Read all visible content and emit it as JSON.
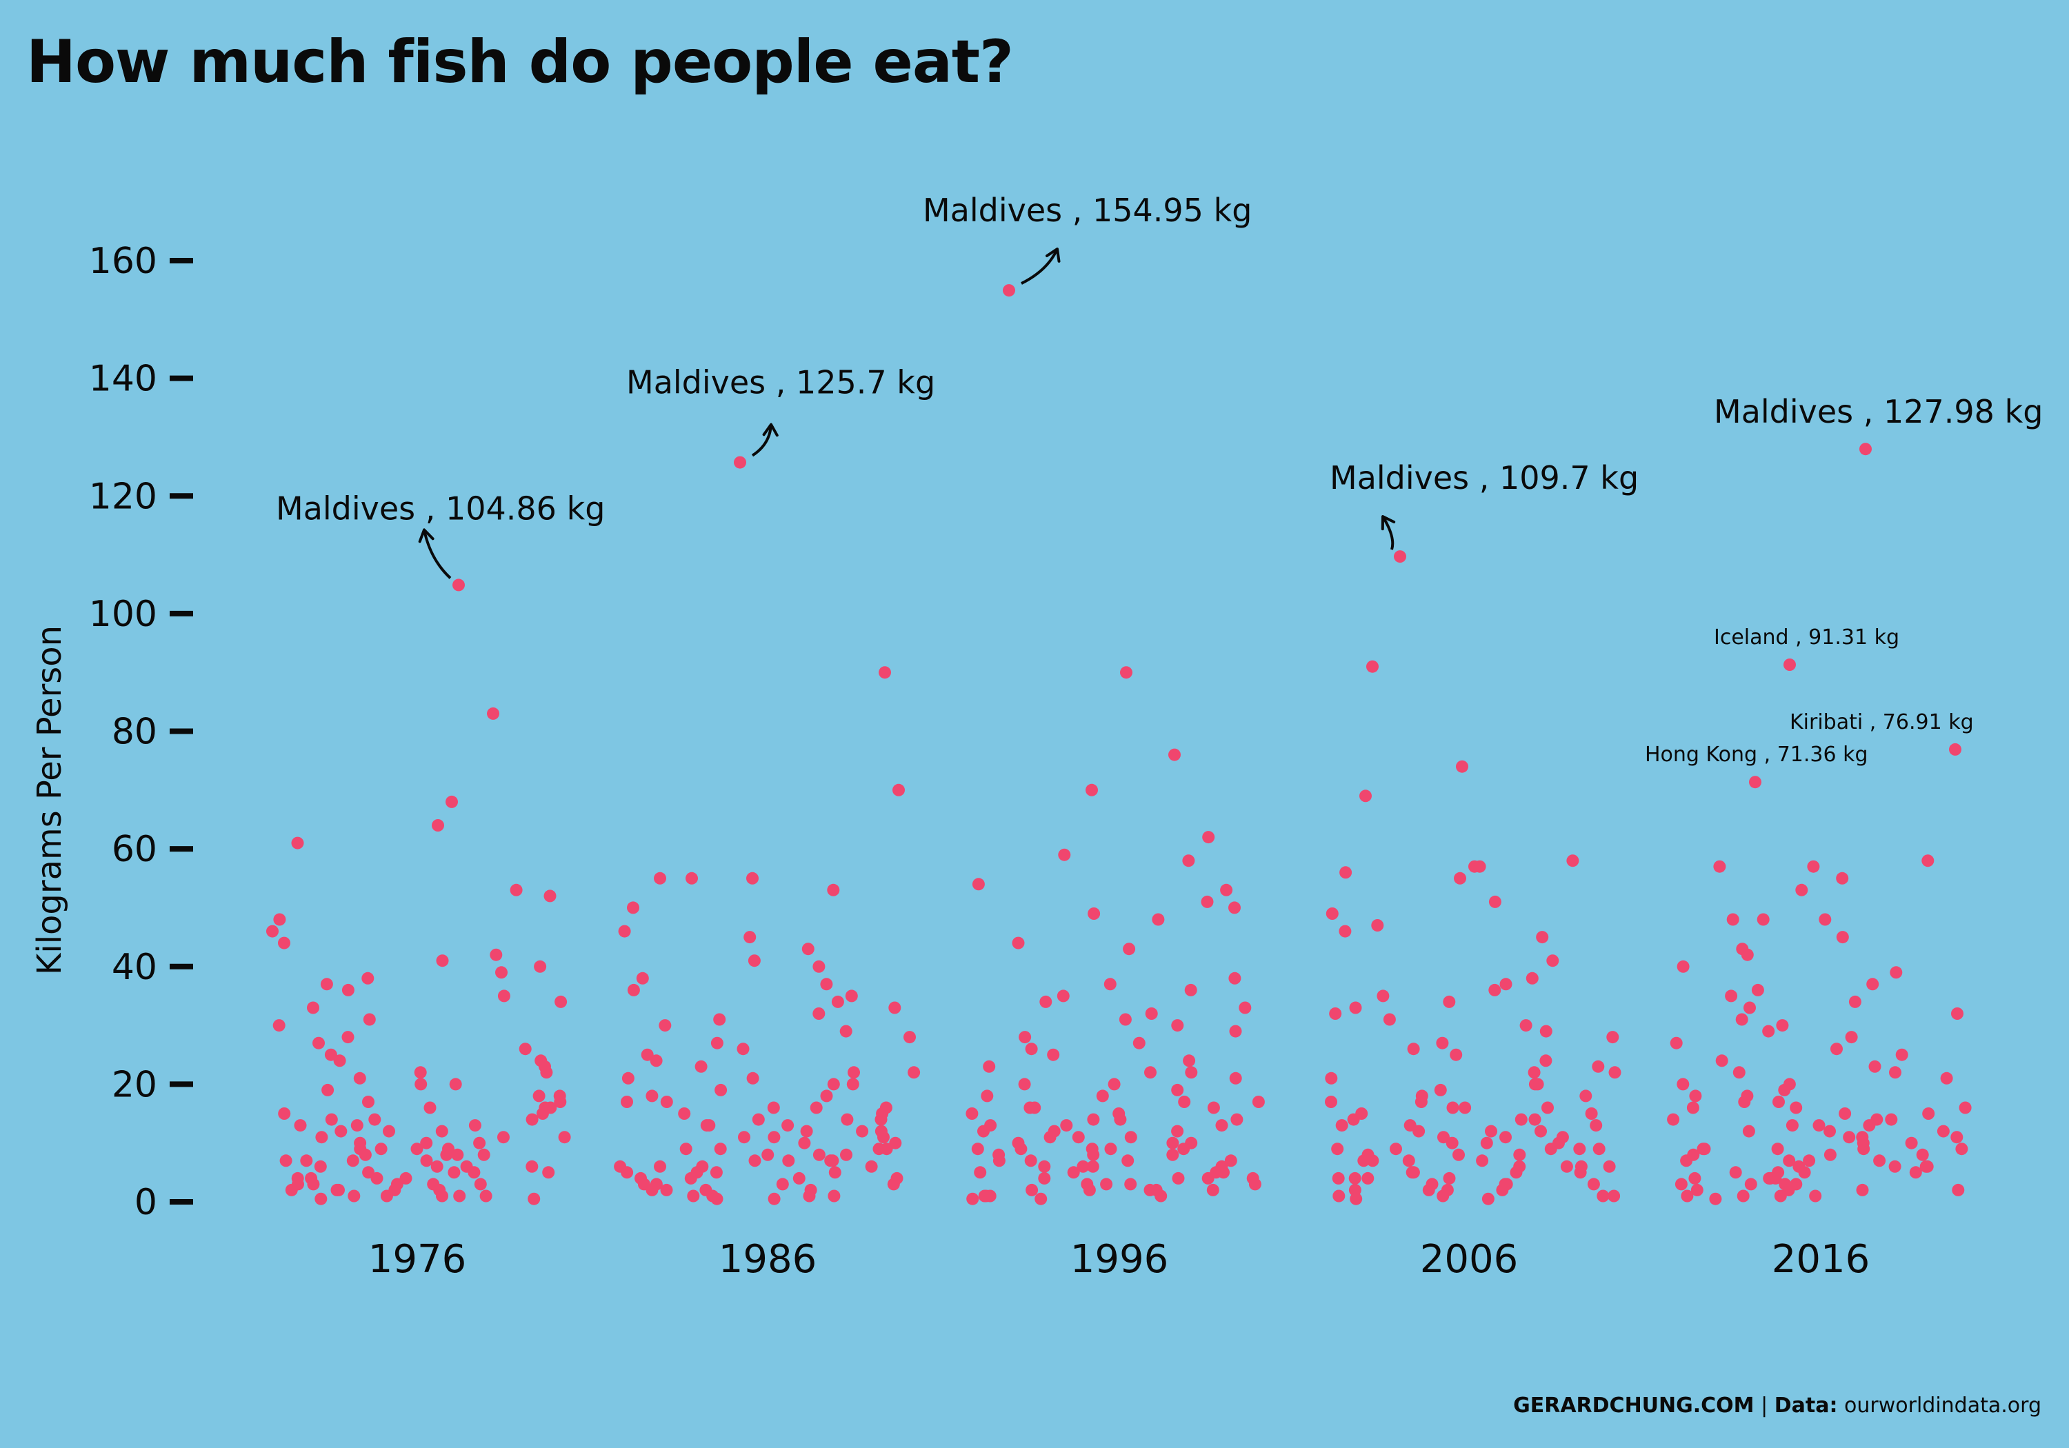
{
  "title": "How much fish do people eat?",
  "footer": {
    "brand": "GERARDCHUNG.COM",
    "separator": "|",
    "data_label": "Data:",
    "source": "ourworldindata.org"
  },
  "colors": {
    "background": "#7ec6e3",
    "points": "#f0466e",
    "text": "#0a0a0a"
  },
  "chart_data": {
    "type": "scatter",
    "ylabel": "Kilograms Per Person",
    "xlabel": "",
    "ylim": [
      0,
      160
    ],
    "yticks": [
      0,
      20,
      40,
      60,
      80,
      100,
      120,
      140,
      160
    ],
    "grid": false,
    "categories": [
      "1976",
      "1986",
      "1996",
      "2006",
      "2016"
    ],
    "series": [
      {
        "values": [
          104.86,
          83,
          68,
          64,
          61,
          53,
          52,
          48,
          46,
          44,
          42,
          41,
          40,
          39,
          38,
          37,
          36,
          35,
          34,
          33,
          31,
          30,
          28,
          27,
          26,
          25,
          24,
          24,
          23,
          22,
          21,
          20,
          20,
          19,
          18,
          17,
          17,
          16,
          16,
          15,
          15,
          14,
          14,
          13,
          13,
          12,
          12,
          11,
          11,
          10,
          10,
          10,
          9,
          9,
          9,
          8,
          8,
          8,
          7,
          7,
          7,
          6,
          6,
          6,
          5,
          5,
          5,
          4,
          4,
          4,
          3,
          3,
          3,
          3,
          2,
          2,
          2,
          2,
          1,
          1,
          1,
          1,
          0.5,
          0.5,
          12,
          8,
          6,
          18,
          22,
          3,
          5,
          14,
          9,
          2,
          11,
          16,
          7,
          4,
          13,
          1
        ]
      },
      {
        "values": [
          125.7,
          90,
          70,
          55,
          55,
          55,
          53,
          50,
          46,
          45,
          43,
          41,
          40,
          38,
          37,
          36,
          35,
          34,
          33,
          32,
          31,
          30,
          29,
          28,
          27,
          26,
          25,
          24,
          23,
          22,
          21,
          21,
          20,
          20,
          19,
          18,
          17,
          17,
          16,
          16,
          15,
          15,
          14,
          14,
          13,
          13,
          12,
          12,
          11,
          11,
          10,
          10,
          9,
          9,
          8,
          8,
          8,
          7,
          7,
          7,
          6,
          6,
          6,
          5,
          5,
          5,
          4,
          4,
          4,
          3,
          3,
          3,
          2,
          2,
          2,
          1,
          1,
          1,
          0.5,
          0.5,
          12,
          9,
          6,
          18,
          22,
          3,
          5,
          14,
          9,
          2,
          11,
          16,
          7,
          4,
          13,
          1
        ]
      },
      {
        "values": [
          154.95,
          90,
          76,
          70,
          62,
          59,
          58,
          54,
          53,
          51,
          50,
          49,
          48,
          44,
          43,
          38,
          37,
          36,
          35,
          34,
          33,
          32,
          31,
          30,
          29,
          28,
          27,
          26,
          25,
          24,
          23,
          22,
          21,
          20,
          20,
          19,
          18,
          17,
          17,
          16,
          16,
          15,
          15,
          14,
          14,
          13,
          13,
          12,
          12,
          11,
          11,
          10,
          10,
          10,
          9,
          9,
          9,
          8,
          8,
          8,
          7,
          7,
          7,
          6,
          6,
          6,
          5,
          5,
          5,
          4,
          4,
          4,
          3,
          3,
          3,
          2,
          2,
          2,
          2,
          1,
          1,
          1,
          0.5,
          0.5,
          12,
          9,
          6,
          18,
          22,
          3,
          5,
          14,
          9,
          2,
          11,
          16,
          7,
          4,
          13,
          1
        ]
      },
      {
        "values": [
          109.7,
          91,
          74,
          69,
          58,
          57,
          57,
          56,
          55,
          51,
          49,
          47,
          46,
          45,
          41,
          38,
          37,
          36,
          35,
          34,
          33,
          32,
          31,
          30,
          29,
          28,
          27,
          26,
          25,
          24,
          23,
          22,
          21,
          20,
          20,
          19,
          18,
          17,
          17,
          16,
          16,
          15,
          15,
          14,
          14,
          13,
          13,
          12,
          12,
          11,
          11,
          10,
          10,
          10,
          9,
          9,
          9,
          8,
          8,
          8,
          7,
          7,
          7,
          6,
          6,
          6,
          5,
          5,
          5,
          4,
          4,
          4,
          3,
          3,
          3,
          2,
          2,
          2,
          1,
          1,
          1,
          0.5,
          0.5,
          12,
          9,
          6,
          18,
          22,
          3,
          5,
          14,
          9,
          2,
          11,
          16,
          7,
          4,
          13,
          1
        ]
      },
      {
        "values": [
          127.98,
          91.31,
          76.91,
          71.36,
          58,
          57,
          57,
          55,
          53,
          48,
          48,
          48,
          45,
          43,
          42,
          40,
          39,
          37,
          36,
          35,
          34,
          33,
          32,
          31,
          30,
          29,
          28,
          27,
          26,
          25,
          24,
          23,
          22,
          21,
          20,
          20,
          19,
          18,
          17,
          17,
          16,
          16,
          15,
          15,
          14,
          14,
          13,
          13,
          12,
          12,
          11,
          11,
          10,
          10,
          9,
          9,
          9,
          8,
          8,
          8,
          7,
          7,
          7,
          6,
          6,
          6,
          5,
          5,
          5,
          4,
          4,
          4,
          3,
          3,
          3,
          2,
          2,
          2,
          1,
          1,
          1,
          0.5,
          12,
          9,
          6,
          18,
          22,
          3,
          5,
          14,
          9,
          2,
          11,
          16,
          7,
          4,
          13,
          1
        ]
      }
    ],
    "annotations": [
      {
        "category": "1976",
        "text": "Maldives , 104.86 kg",
        "value": 104.86,
        "size": "large",
        "arrow": true
      },
      {
        "category": "1986",
        "text": "Maldives , 125.7 kg",
        "value": 125.7,
        "size": "large",
        "arrow": true
      },
      {
        "category": "1996",
        "text": "Maldives , 154.95 kg",
        "value": 154.95,
        "size": "large",
        "arrow": true
      },
      {
        "category": "2006",
        "text": "Maldives , 109.7 kg",
        "value": 109.7,
        "size": "large",
        "arrow": true
      },
      {
        "category": "2016",
        "text": "Maldives , 127.98 kg",
        "value": 127.98,
        "size": "large",
        "arrow": false
      },
      {
        "category": "2016",
        "text": "Iceland , 91.31 kg",
        "value": 91.31,
        "size": "small",
        "arrow": false
      },
      {
        "category": "2016",
        "text": "Kiribati , 76.91 kg",
        "value": 76.91,
        "size": "small",
        "arrow": false
      },
      {
        "category": "2016",
        "text": "Hong Kong , 71.36 kg",
        "value": 71.36,
        "size": "small",
        "arrow": false
      }
    ]
  }
}
